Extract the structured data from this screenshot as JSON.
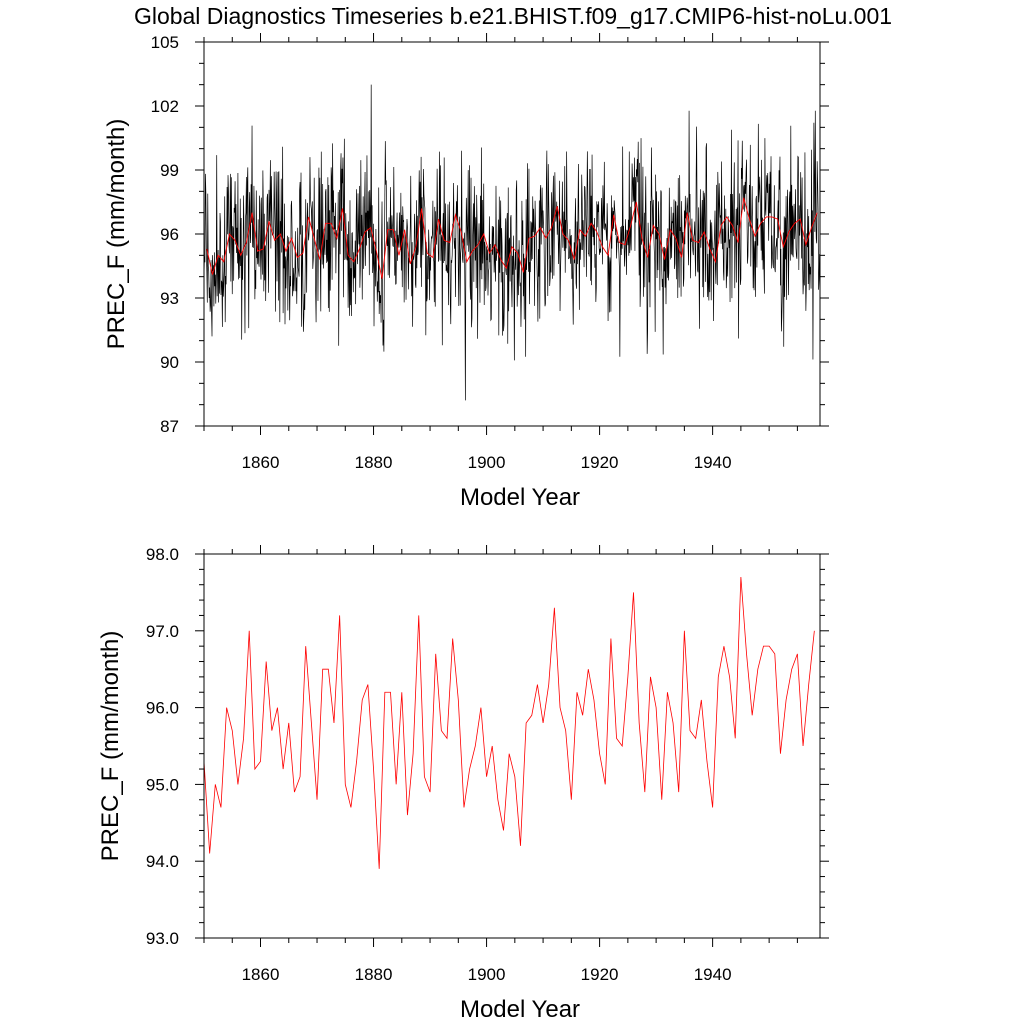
{
  "title": "Global Diagnostics Timeseries b.e21.BHIST.f09_g17.CMIP6-hist-noLu.001",
  "colors": {
    "monthly": "#000000",
    "annual": "#ff0000",
    "axes": "#000000"
  },
  "chart_data": [
    {
      "type": "line",
      "xlabel": "Model Year",
      "ylabel": "PREC_F (mm/month)",
      "xlim": [
        1850,
        1959
      ],
      "ylim": [
        87,
        105
      ],
      "x_ticks": [
        1860,
        1880,
        1900,
        1920,
        1940
      ],
      "x_tick_labels": [
        "1860",
        "1880",
        "1900",
        "1920",
        "1940"
      ],
      "y_ticks": [
        87,
        90,
        93,
        96,
        99,
        102,
        105
      ],
      "y_tick_labels": [
        "87",
        "90",
        "93",
        "96",
        "99",
        "102",
        "105"
      ],
      "series": [
        {
          "kind": "monthly",
          "color": "#000000",
          "x_start": 1850.0,
          "x_step": 0.08333333,
          "seed": 20210001,
          "noise_std": 1.9,
          "values_note": "monthly values fluctuate around the annual mean; extremes ~88.2 (1896) to ~103.0 (1880)"
        },
        {
          "kind": "annual",
          "color": "#ff0000",
          "ref": "annual_mean"
        }
      ]
    },
    {
      "type": "line",
      "xlabel": "Model Year",
      "ylabel": "PREC_F (mm/month)",
      "xlim": [
        1850,
        1959
      ],
      "ylim": [
        93,
        98
      ],
      "x_ticks": [
        1860,
        1880,
        1900,
        1920,
        1940
      ],
      "x_tick_labels": [
        "1860",
        "1880",
        "1900",
        "1920",
        "1940"
      ],
      "y_ticks": [
        93,
        94,
        95,
        96,
        97,
        98
      ],
      "y_tick_labels": [
        "93.0",
        "94.0",
        "95.0",
        "96.0",
        "97.0",
        "98.0"
      ],
      "series": [
        {
          "kind": "annual",
          "color": "#ff0000",
          "ref": "annual_mean"
        }
      ]
    }
  ],
  "annual_mean": {
    "x_start": 1850,
    "x_step": 1,
    "values": [
      95.3,
      94.1,
      95.0,
      94.7,
      96.0,
      95.7,
      95.0,
      95.6,
      97.0,
      95.2,
      95.3,
      96.6,
      95.7,
      96.0,
      95.2,
      95.8,
      94.9,
      95.1,
      96.8,
      95.8,
      94.8,
      96.5,
      96.5,
      95.8,
      97.2,
      95.0,
      94.7,
      95.3,
      96.1,
      96.3,
      95.2,
      93.9,
      96.2,
      96.2,
      95.0,
      96.2,
      94.6,
      95.4,
      97.2,
      95.1,
      94.9,
      96.7,
      95.7,
      95.6,
      96.9,
      96.1,
      94.7,
      95.2,
      95.5,
      96.0,
      95.1,
      95.5,
      94.8,
      94.4,
      95.4,
      95.1,
      94.2,
      95.8,
      95.9,
      96.3,
      95.8,
      96.3,
      97.3,
      96.0,
      95.7,
      94.8,
      96.2,
      95.9,
      96.5,
      96.1,
      95.4,
      95.0,
      96.9,
      95.6,
      95.5,
      96.4,
      97.5,
      95.8,
      94.9,
      96.4,
      96.0,
      94.8,
      96.2,
      95.8,
      94.9,
      97.0,
      95.7,
      95.6,
      96.1,
      95.3,
      94.7,
      96.4,
      96.8,
      96.4,
      95.6,
      97.7,
      96.7,
      95.9,
      96.5,
      96.8,
      96.8,
      96.7,
      95.4,
      96.1,
      96.5,
      96.7,
      95.5,
      96.3,
      97.0
    ]
  }
}
